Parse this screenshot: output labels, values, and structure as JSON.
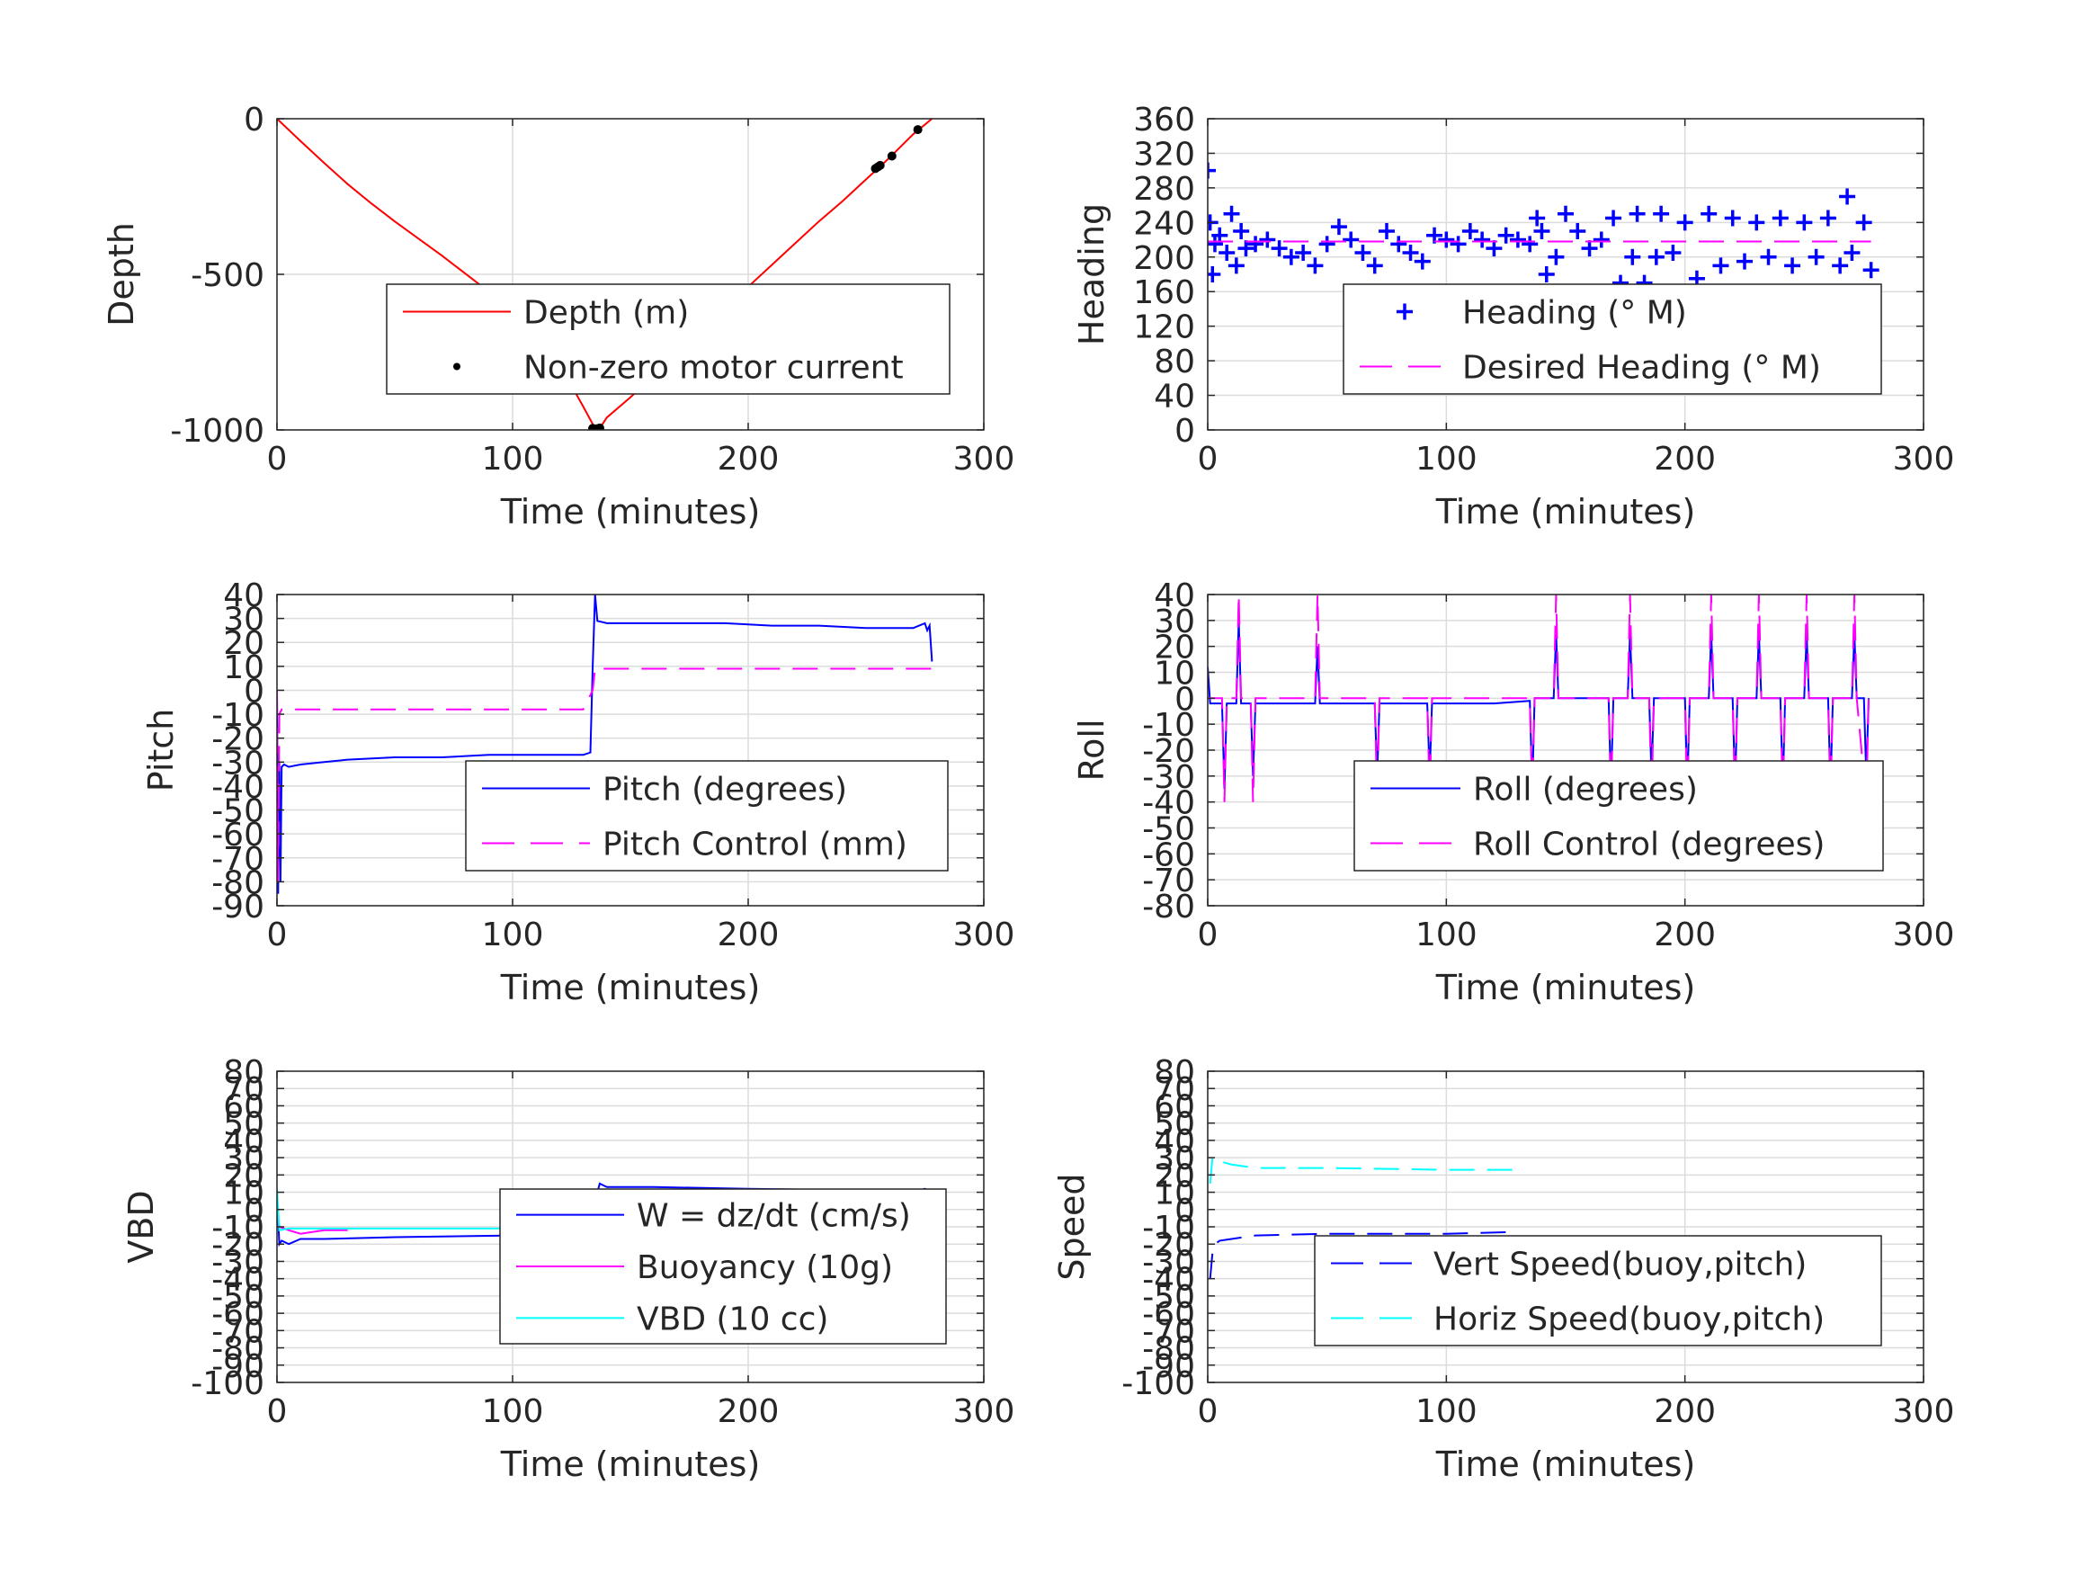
{
  "chart_data": [
    {
      "type": "line",
      "xlabel": "Time (minutes)",
      "ylabel": "Depth",
      "xlim": [
        0,
        300
      ],
      "ylim": [
        -1000,
        0
      ],
      "xticks": [
        0,
        100,
        200,
        300
      ],
      "yticks": [
        -1000,
        -500,
        0
      ],
      "xticklabels": [
        "0",
        "100",
        "200",
        "300"
      ],
      "yticklabels": [
        "-1000",
        "-500",
        "0"
      ],
      "grid": true,
      "legend_position": "center",
      "series": [
        {
          "name": "Depth (m)",
          "style": "solid",
          "color": "#ff0000",
          "x": [
            0,
            10,
            20,
            30,
            40,
            50,
            60,
            70,
            80,
            90,
            100,
            110,
            120,
            130,
            135,
            137,
            140,
            150,
            160,
            170,
            180,
            190,
            200,
            210,
            220,
            230,
            240,
            250,
            260,
            270,
            278
          ],
          "y": [
            0,
            -72,
            -142,
            -210,
            -272,
            -330,
            -385,
            -440,
            -498,
            -556,
            -615,
            -705,
            -790,
            -925,
            -995,
            -995,
            -960,
            -895,
            -825,
            -750,
            -680,
            -610,
            -540,
            -470,
            -400,
            -330,
            -265,
            -195,
            -125,
            -50,
            0
          ]
        },
        {
          "name": "Non-zero motor current",
          "style": "dots",
          "color": "#000000",
          "x": [
            134,
            135,
            136,
            137,
            254,
            255,
            256,
            261,
            272
          ],
          "y": [
            -995,
            -997,
            -996,
            -994,
            -160,
            -155,
            -150,
            -120,
            -35
          ]
        }
      ]
    },
    {
      "type": "scatter",
      "xlabel": "Time (minutes)",
      "ylabel": "Heading",
      "xlim": [
        0,
        300
      ],
      "ylim": [
        0,
        360
      ],
      "xticks": [
        0,
        100,
        200,
        300
      ],
      "yticks": [
        0,
        40,
        80,
        120,
        160,
        200,
        240,
        280,
        320,
        360
      ],
      "xticklabels": [
        "0",
        "100",
        "200",
        "300"
      ],
      "yticklabels": [
        "0",
        "40",
        "80",
        "120",
        "160",
        "200",
        "240",
        "280",
        "320",
        "360"
      ],
      "grid": true,
      "legend_position": "lower-right",
      "series": [
        {
          "name": "Heading (° M)",
          "style": "plus",
          "color": "#0000ff",
          "x": [
            0,
            1,
            2,
            3,
            5,
            8,
            10,
            12,
            14,
            16,
            20,
            25,
            30,
            35,
            40,
            45,
            50,
            55,
            60,
            65,
            70,
            75,
            80,
            85,
            90,
            95,
            100,
            105,
            110,
            115,
            120,
            125,
            130,
            135,
            138,
            140,
            142,
            144,
            146,
            150,
            155,
            160,
            165,
            170,
            173,
            175,
            178,
            180,
            183,
            185,
            188,
            190,
            195,
            200,
            205,
            210,
            215,
            220,
            225,
            230,
            235,
            240,
            245,
            250,
            255,
            260,
            265,
            268,
            270,
            275,
            278
          ],
          "y": [
            300,
            240,
            180,
            215,
            225,
            205,
            250,
            190,
            230,
            210,
            215,
            220,
            210,
            200,
            205,
            190,
            215,
            235,
            220,
            205,
            190,
            230,
            215,
            205,
            195,
            225,
            220,
            215,
            230,
            220,
            210,
            225,
            220,
            215,
            245,
            230,
            180,
            140,
            200,
            250,
            230,
            210,
            220,
            245,
            170,
            140,
            200,
            250,
            170,
            140,
            200,
            250,
            205,
            240,
            175,
            250,
            190,
            245,
            195,
            240,
            200,
            245,
            190,
            240,
            200,
            245,
            190,
            270,
            205,
            240,
            185
          ]
        },
        {
          "name": "Desired Heading (° M)",
          "style": "dashed",
          "color": "#ff00ff",
          "x": [
            0,
            278
          ],
          "y": [
            218,
            218
          ]
        }
      ]
    },
    {
      "type": "line",
      "xlabel": "Time (minutes)",
      "ylabel": "Pitch",
      "xlim": [
        0,
        300
      ],
      "ylim": [
        -90,
        40
      ],
      "xticks": [
        0,
        100,
        200,
        300
      ],
      "yticks": [
        -90,
        -80,
        -70,
        -60,
        -50,
        -40,
        -30,
        -20,
        -10,
        0,
        10,
        20,
        30,
        40
      ],
      "xticklabels": [
        "0",
        "100",
        "200",
        "300"
      ],
      "yticklabels": [
        "-90",
        "-80",
        "-70",
        "-60",
        "-50",
        "-40",
        "-30",
        "-20",
        "-10",
        "0",
        "10",
        "20",
        "30",
        "40"
      ],
      "grid": true,
      "legend_position": "lower-right",
      "series": [
        {
          "name": "Pitch (degrees)",
          "style": "solid",
          "color": "#0000ff",
          "x": [
            0,
            0.5,
            1,
            1.5,
            2,
            3,
            5,
            10,
            20,
            30,
            50,
            70,
            90,
            110,
            130,
            133,
            134,
            135,
            136,
            140,
            150,
            170,
            190,
            210,
            230,
            250,
            270,
            275,
            276,
            277,
            278
          ],
          "y": [
            0,
            -85,
            -30,
            -80,
            -32,
            -31,
            -32,
            -31,
            -30,
            -29,
            -28,
            -28,
            -27,
            -27,
            -27,
            -26,
            10,
            40,
            29,
            28,
            28,
            28,
            28,
            27,
            27,
            26,
            26,
            28,
            25,
            27,
            12
          ]
        },
        {
          "name": "Pitch Control (mm)",
          "style": "dashed",
          "color": "#ff00ff",
          "x": [
            0,
            0.5,
            1,
            2,
            10,
            50,
            100,
            130,
            134,
            135,
            137,
            150,
            200,
            250,
            278
          ],
          "y": [
            0,
            -80,
            -10,
            -8,
            -8,
            -8,
            -8,
            -8,
            0,
            9,
            9,
            9,
            9,
            9,
            9
          ]
        }
      ]
    },
    {
      "type": "line",
      "xlabel": "Time (minutes)",
      "ylabel": "Roll",
      "xlim": [
        0,
        300
      ],
      "ylim": [
        -80,
        40
      ],
      "xticks": [
        0,
        100,
        200,
        300
      ],
      "yticks": [
        -80,
        -70,
        -60,
        -50,
        -40,
        -30,
        -20,
        -10,
        0,
        10,
        20,
        30,
        40
      ],
      "xticklabels": [
        "0",
        "100",
        "200",
        "300"
      ],
      "yticklabels": [
        "-80",
        "-70",
        "-60",
        "-50",
        "-40",
        "-30",
        "-20",
        "-10",
        "0",
        "10",
        "20",
        "30",
        "40"
      ],
      "grid": true,
      "legend_position": "lower-right",
      "series": [
        {
          "name": "Roll (degrees)",
          "style": "solid",
          "color": "#0000ff",
          "x": [
            0,
            1,
            2,
            3,
            6,
            7,
            8,
            12,
            13,
            14,
            18,
            19,
            20,
            30,
            45,
            46,
            47,
            60,
            70,
            71,
            72,
            90,
            92,
            93,
            94,
            120,
            135,
            136,
            137,
            140,
            145,
            146,
            147,
            160,
            168,
            169,
            170,
            176,
            177,
            178,
            185,
            186,
            187,
            195,
            200,
            201,
            202,
            210,
            211,
            212,
            220,
            221,
            222,
            230,
            231,
            232,
            240,
            241,
            242,
            250,
            251,
            252,
            260,
            261,
            262,
            270,
            271,
            272,
            275,
            276,
            277
          ],
          "y": [
            12,
            -2,
            -2,
            -2,
            -2,
            -35,
            -2,
            -2,
            30,
            -2,
            -2,
            -30,
            -2,
            -2,
            -2,
            20,
            -2,
            -2,
            -2,
            -30,
            -2,
            -2,
            -2,
            -30,
            -2,
            -2,
            -1,
            -35,
            0,
            0,
            0,
            25,
            0,
            0,
            0,
            -35,
            0,
            0,
            25,
            0,
            0,
            -30,
            0,
            0,
            0,
            -35,
            0,
            0,
            25,
            0,
            0,
            -35,
            0,
            0,
            25,
            0,
            0,
            -35,
            0,
            0,
            25,
            0,
            0,
            -35,
            0,
            0,
            25,
            0,
            0,
            -30,
            0
          ]
        },
        {
          "name": "Roll Control (degrees)",
          "style": "dashed",
          "color": "#ff00ff",
          "x": [
            0,
            6,
            7,
            8,
            12,
            13,
            14,
            18,
            19,
            20,
            45,
            46,
            47,
            70,
            71,
            72,
            92,
            93,
            94,
            135,
            136,
            137,
            145,
            146,
            147,
            168,
            169,
            170,
            176,
            177,
            178,
            185,
            186,
            187,
            200,
            201,
            202,
            210,
            211,
            212,
            220,
            221,
            222,
            230,
            231,
            232,
            240,
            241,
            242,
            250,
            251,
            252,
            260,
            261,
            262,
            270,
            271,
            272,
            276,
            277
          ],
          "y": [
            0,
            0,
            -40,
            0,
            0,
            40,
            0,
            0,
            -40,
            0,
            0,
            40,
            0,
            0,
            -40,
            0,
            0,
            -40,
            0,
            0,
            -40,
            0,
            0,
            40,
            0,
            0,
            -40,
            0,
            0,
            40,
            0,
            0,
            -40,
            0,
            0,
            -40,
            0,
            0,
            40,
            0,
            0,
            -40,
            0,
            0,
            40,
            0,
            0,
            -40,
            0,
            0,
            40,
            0,
            0,
            -40,
            0,
            0,
            40,
            0,
            -40,
            0
          ]
        }
      ]
    },
    {
      "type": "line",
      "xlabel": "Time (minutes)",
      "ylabel": "VBD",
      "xlim": [
        0,
        300
      ],
      "ylim": [
        -100,
        80
      ],
      "xticks": [
        0,
        100,
        200,
        300
      ],
      "yticks": [
        -100,
        -90,
        -80,
        -70,
        -60,
        -50,
        -40,
        -30,
        -20,
        -10,
        0,
        10,
        20,
        30,
        40,
        50,
        60,
        70,
        80
      ],
      "xticklabels": [
        "0",
        "100",
        "200",
        "300"
      ],
      "yticklabels": [
        "-100",
        "-90",
        "-80",
        "-70",
        "-60",
        "-50",
        "-40",
        "-30",
        "-20",
        "-10",
        "0",
        "10",
        "20",
        "30",
        "40",
        "50",
        "60",
        "70",
        "80"
      ],
      "grid": true,
      "legend_position": "lower-right",
      "series": [
        {
          "name": "W = dz/dt (cm/s)",
          "style": "solid",
          "color": "#0000ff",
          "x": [
            0,
            1,
            2,
            5,
            10,
            20,
            50,
            100,
            130,
            134,
            135,
            137,
            140,
            160,
            200,
            250,
            270,
            275,
            278
          ],
          "y": [
            10,
            -20,
            -18,
            -20,
            -17,
            -17,
            -16,
            -15,
            -15,
            -14,
            5,
            15,
            13,
            13,
            12,
            11,
            10,
            12,
            10
          ]
        },
        {
          "name": "Buoyancy (10g)",
          "style": "solid",
          "color": "#ff00ff",
          "x": [
            0,
            1,
            5,
            10,
            15,
            20,
            30
          ],
          "y": [
            0,
            -10,
            -12,
            -14,
            -13,
            -12,
            -12
          ]
        },
        {
          "name": "VBD (10 cc)",
          "style": "solid",
          "color": "#00ffff",
          "x": [
            0,
            1,
            5,
            20,
            100,
            134,
            135,
            140,
            200,
            278
          ],
          "y": [
            12,
            -12,
            -11,
            -11,
            -11,
            -11,
            10,
            10,
            10,
            10
          ]
        }
      ]
    },
    {
      "type": "line",
      "xlabel": "Time (minutes)",
      "ylabel": "Speed",
      "xlim": [
        0,
        300
      ],
      "ylim": [
        -100,
        80
      ],
      "xticks": [
        0,
        100,
        200,
        300
      ],
      "yticks": [
        -100,
        -90,
        -80,
        -70,
        -60,
        -50,
        -40,
        -30,
        -20,
        -10,
        0,
        10,
        20,
        30,
        40,
        50,
        60,
        70,
        80
      ],
      "xticklabels": [
        "0",
        "100",
        "200",
        "300"
      ],
      "yticklabels": [
        "-100",
        "-90",
        "-80",
        "-70",
        "-60",
        "-50",
        "-40",
        "-30",
        "-20",
        "-10",
        "0",
        "10",
        "20",
        "30",
        "40",
        "50",
        "60",
        "70",
        "80"
      ],
      "grid": true,
      "legend_position": "lower-right",
      "series": [
        {
          "name": "Vert Speed(buoy,pitch)",
          "style": "dashed",
          "color": "#0000ff",
          "x": [
            1,
            2,
            3,
            5,
            10,
            20,
            50,
            100,
            128
          ],
          "y": [
            -40,
            -25,
            -20,
            -18,
            -17,
            -15,
            -14,
            -14,
            -13
          ]
        },
        {
          "name": "Horiz Speed(buoy,pitch)",
          "style": "dashed",
          "color": "#00ffff",
          "x": [
            1,
            2,
            5,
            10,
            20,
            50,
            100,
            128
          ],
          "y": [
            15,
            30,
            28,
            26,
            24,
            24,
            23,
            23
          ]
        }
      ]
    }
  ]
}
